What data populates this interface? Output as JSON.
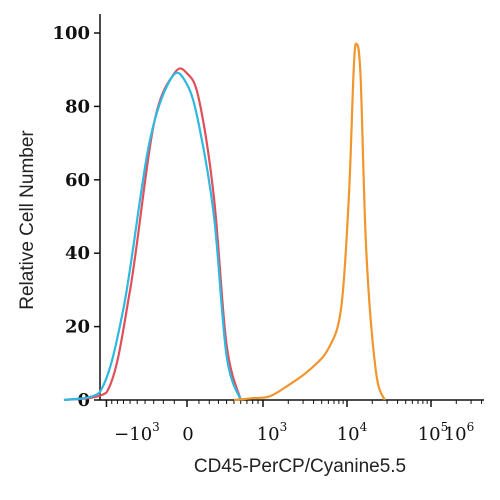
{
  "chart_data": {
    "type": "line",
    "title": "",
    "xlabel": "CD45-PerCP/Cyanine5.5",
    "ylabel": "Relative Cell Number",
    "x_scale": "biexponential",
    "ylim": [
      0,
      100
    ],
    "yticks": [
      "0",
      "20",
      "40",
      "60",
      "80",
      "100"
    ],
    "xticks": [
      {
        "base": "−10",
        "exp": "3"
      },
      {
        "base": "0",
        "exp": ""
      },
      {
        "base": "10",
        "exp": "3"
      },
      {
        "base": "10",
        "exp": "4"
      },
      {
        "base": "10",
        "exp": "5"
      },
      {
        "base": "10",
        "exp": "6"
      }
    ],
    "grid": false,
    "legend": "none",
    "series": [
      {
        "color": "#e0505a",
        "x": [
          -3000,
          -1000,
          -600,
          -300,
          -100,
          0,
          100,
          250,
          400,
          600
        ],
        "y": [
          0,
          2,
          30,
          75,
          89,
          89,
          82,
          55,
          15,
          0
        ]
      },
      {
        "color": "#2fb8e0",
        "x": [
          -3000,
          -1200,
          -700,
          -350,
          -120,
          0,
          100,
          250,
          400,
          600
        ],
        "y": [
          0,
          2,
          25,
          70,
          88,
          86,
          75,
          50,
          12,
          0
        ]
      },
      {
        "color": "#f0962d",
        "x": [
          500,
          800,
          1200,
          2000,
          3500,
          6000,
          8500,
          10500,
          12000,
          13000,
          14500,
          17000,
          22000,
          28000
        ],
        "y": [
          0,
          0.5,
          1,
          4,
          8,
          14,
          25,
          55,
          90,
          97,
          88,
          40,
          8,
          0
        ]
      }
    ]
  }
}
